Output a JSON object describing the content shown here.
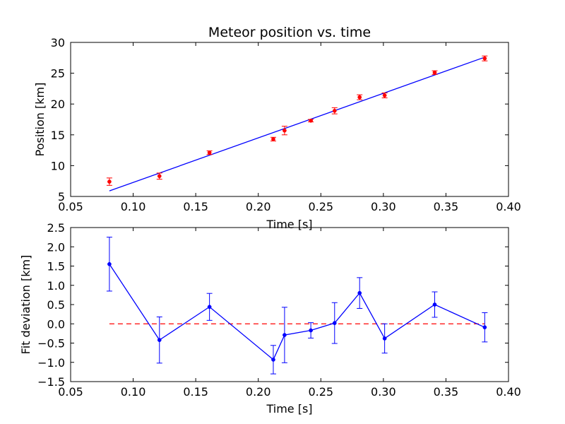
{
  "chart_data": [
    {
      "type": "scatter",
      "title": "Meteor position vs. time",
      "xlabel": "Time [s]",
      "ylabel": "Position [km]",
      "xlim": [
        0.05,
        0.4
      ],
      "ylim": [
        5,
        30
      ],
      "xticks": [
        "0.05",
        "0.10",
        "0.15",
        "0.20",
        "0.25",
        "0.30",
        "0.35",
        "0.40"
      ],
      "yticks": [
        "5",
        "10",
        "15",
        "20",
        "25",
        "30"
      ],
      "grid": false,
      "series": [
        {
          "kind": "errorbar",
          "color": "#ff0000",
          "x": [
            0.081,
            0.121,
            0.161,
            0.212,
            0.221,
            0.242,
            0.261,
            0.281,
            0.301,
            0.341,
            0.381
          ],
          "y": [
            7.4,
            8.3,
            12.1,
            14.3,
            15.7,
            17.3,
            18.9,
            21.1,
            21.4,
            25.1,
            27.4
          ],
          "yerr": [
            0.6,
            0.5,
            0.3,
            0.3,
            0.7,
            0.2,
            0.5,
            0.4,
            0.4,
            0.3,
            0.4
          ]
        },
        {
          "kind": "fit-line",
          "color": "#0000ff",
          "x": [
            0.081,
            0.381
          ],
          "y": [
            5.9,
            27.6
          ]
        }
      ]
    },
    {
      "type": "line",
      "title": "",
      "xlabel": "Time [s]",
      "ylabel": "Fit deviation [km]",
      "xlim": [
        0.05,
        0.4
      ],
      "ylim": [
        -1.5,
        2.5
      ],
      "xticks": [
        "0.05",
        "0.10",
        "0.15",
        "0.20",
        "0.25",
        "0.30",
        "0.35",
        "0.40"
      ],
      "yticks": [
        "−1.5",
        "−1.0",
        "−0.5",
        "0.0",
        "0.5",
        "1.0",
        "1.5",
        "2.0",
        "2.5"
      ],
      "grid": false,
      "series": [
        {
          "kind": "errorbar-line",
          "color": "#0000ff",
          "x": [
            0.081,
            0.121,
            0.161,
            0.212,
            0.221,
            0.242,
            0.261,
            0.281,
            0.301,
            0.341,
            0.381
          ],
          "y": [
            1.55,
            -0.42,
            0.44,
            -0.93,
            -0.29,
            -0.17,
            0.02,
            0.8,
            -0.38,
            0.5,
            -0.09
          ],
          "yerr": [
            0.7,
            0.6,
            0.35,
            0.37,
            0.72,
            0.2,
            0.53,
            0.4,
            0.38,
            0.33,
            0.38
          ]
        },
        {
          "kind": "reference-line",
          "color": "#ff0000",
          "style": "dashed",
          "x": [
            0.081,
            0.381
          ],
          "y": [
            0,
            0
          ]
        }
      ]
    }
  ]
}
